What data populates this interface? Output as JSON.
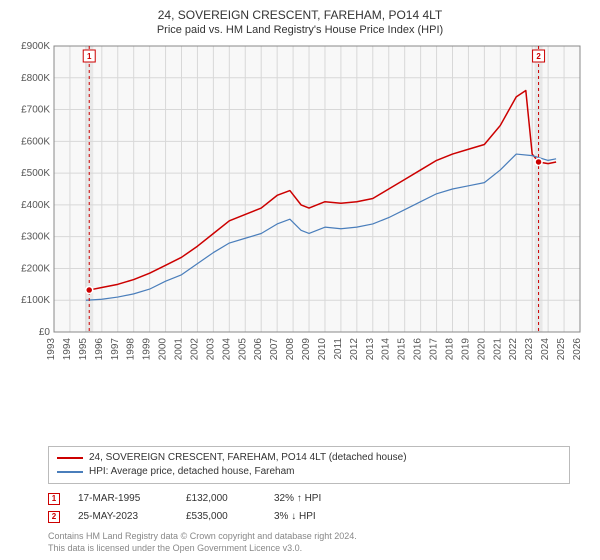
{
  "header": {
    "address": "24, SOVEREIGN CRESCENT, FAREHAM, PO14 4LT",
    "subtitle": "Price paid vs. HM Land Registry's House Price Index (HPI)"
  },
  "chart": {
    "type": "line",
    "background_color": "#f8f8f8",
    "grid_color": "#d8d8d8",
    "sale_band_color": "#e8e8e8",
    "axis_color": "#888888",
    "x": {
      "start": 1993,
      "end": 2026,
      "tick_step": 1,
      "label_fontsize": 10,
      "label_color": "#555555",
      "rotation": -90
    },
    "y": {
      "min": 0,
      "max": 900000,
      "tick_step": 100000,
      "tick_labels": [
        "£0",
        "£100K",
        "£200K",
        "£300K",
        "£400K",
        "£500K",
        "£600K",
        "£700K",
        "£800K",
        "£900K"
      ],
      "label_fontsize": 10,
      "label_color": "#555555"
    },
    "series": [
      {
        "name": "24, SOVEREIGN CRESCENT, FAREHAM, PO14 4LT (detached house)",
        "color": "#cc0000",
        "line_width": 1.5,
        "points": [
          [
            1995.2,
            132000
          ],
          [
            1996,
            140000
          ],
          [
            1997,
            150000
          ],
          [
            1998,
            165000
          ],
          [
            1999,
            185000
          ],
          [
            2000,
            210000
          ],
          [
            2001,
            235000
          ],
          [
            2002,
            270000
          ],
          [
            2003,
            310000
          ],
          [
            2004,
            350000
          ],
          [
            2005,
            370000
          ],
          [
            2006,
            390000
          ],
          [
            2007,
            430000
          ],
          [
            2007.8,
            445000
          ],
          [
            2008.5,
            400000
          ],
          [
            2009,
            390000
          ],
          [
            2010,
            410000
          ],
          [
            2011,
            405000
          ],
          [
            2012,
            410000
          ],
          [
            2013,
            420000
          ],
          [
            2014,
            450000
          ],
          [
            2015,
            480000
          ],
          [
            2016,
            510000
          ],
          [
            2017,
            540000
          ],
          [
            2018,
            560000
          ],
          [
            2019,
            575000
          ],
          [
            2020,
            590000
          ],
          [
            2021,
            650000
          ],
          [
            2022,
            740000
          ],
          [
            2022.6,
            760000
          ],
          [
            2023,
            560000
          ],
          [
            2023.4,
            535000
          ],
          [
            2024,
            530000
          ],
          [
            2024.5,
            535000
          ]
        ]
      },
      {
        "name": "HPI: Average price, detached house, Fareham",
        "color": "#4a7ebb",
        "line_width": 1.2,
        "points": [
          [
            1995,
            100000
          ],
          [
            1996,
            103000
          ],
          [
            1997,
            110000
          ],
          [
            1998,
            120000
          ],
          [
            1999,
            135000
          ],
          [
            2000,
            160000
          ],
          [
            2001,
            180000
          ],
          [
            2002,
            215000
          ],
          [
            2003,
            250000
          ],
          [
            2004,
            280000
          ],
          [
            2005,
            295000
          ],
          [
            2006,
            310000
          ],
          [
            2007,
            340000
          ],
          [
            2007.8,
            355000
          ],
          [
            2008.5,
            320000
          ],
          [
            2009,
            310000
          ],
          [
            2010,
            330000
          ],
          [
            2011,
            325000
          ],
          [
            2012,
            330000
          ],
          [
            2013,
            340000
          ],
          [
            2014,
            360000
          ],
          [
            2015,
            385000
          ],
          [
            2016,
            410000
          ],
          [
            2017,
            435000
          ],
          [
            2018,
            450000
          ],
          [
            2019,
            460000
          ],
          [
            2020,
            470000
          ],
          [
            2021,
            510000
          ],
          [
            2022,
            560000
          ],
          [
            2023,
            555000
          ],
          [
            2024,
            540000
          ],
          [
            2024.5,
            545000
          ]
        ]
      }
    ],
    "sale_markers": [
      {
        "n": 1,
        "year": 1995.21,
        "price": 132000
      },
      {
        "n": 2,
        "year": 2023.4,
        "price": 535000
      }
    ],
    "marker_style": {
      "box_stroke": "#cc0000",
      "box_fill": "#ffffff",
      "dash_color": "#cc0000",
      "dash": "3,3",
      "dot_fill": "#cc0000",
      "dot_stroke": "#ffffff",
      "font_size": 8,
      "font_weight": "bold"
    }
  },
  "legend": {
    "items": [
      {
        "color": "#cc0000",
        "label": "24, SOVEREIGN CRESCENT, FAREHAM, PO14 4LT (detached house)"
      },
      {
        "color": "#4a7ebb",
        "label": "HPI: Average price, detached house, Fareham"
      }
    ]
  },
  "sales": [
    {
      "n": "1",
      "date": "17-MAR-1995",
      "price": "£132,000",
      "delta": "32% ↑ HPI"
    },
    {
      "n": "2",
      "date": "25-MAY-2023",
      "price": "£535,000",
      "delta": "3% ↓ HPI"
    }
  ],
  "attribution": {
    "line1": "Contains HM Land Registry data © Crown copyright and database right 2024.",
    "line2": "This data is licensed under the Open Government Licence v3.0."
  }
}
